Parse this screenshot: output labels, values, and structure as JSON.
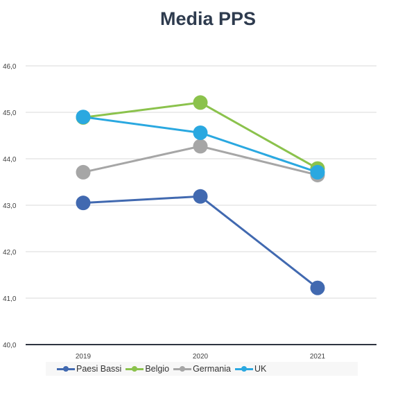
{
  "chart_data": {
    "type": "line",
    "title": "Media PPS",
    "categories": [
      "2019",
      "2020",
      "2021"
    ],
    "ylim": [
      40.0,
      46.0
    ],
    "yticks": [
      "40,0",
      "41,0",
      "42,0",
      "43,0",
      "44,0",
      "45,0",
      "46,0"
    ],
    "grid": true,
    "legend_position": "bottom",
    "series": [
      {
        "name": "Paesi Bassi",
        "color": "#4169b0",
        "values": [
          43.05,
          43.19,
          41.22
        ]
      },
      {
        "name": "Belgio",
        "color": "#8bc24c",
        "values": [
          44.89,
          45.21,
          43.79
        ]
      },
      {
        "name": "Germania",
        "color": "#a6a6a6",
        "values": [
          43.71,
          44.27,
          43.65
        ]
      },
      {
        "name": "UK",
        "color": "#2aa8e0",
        "values": [
          44.9,
          44.56,
          43.71
        ]
      }
    ]
  }
}
